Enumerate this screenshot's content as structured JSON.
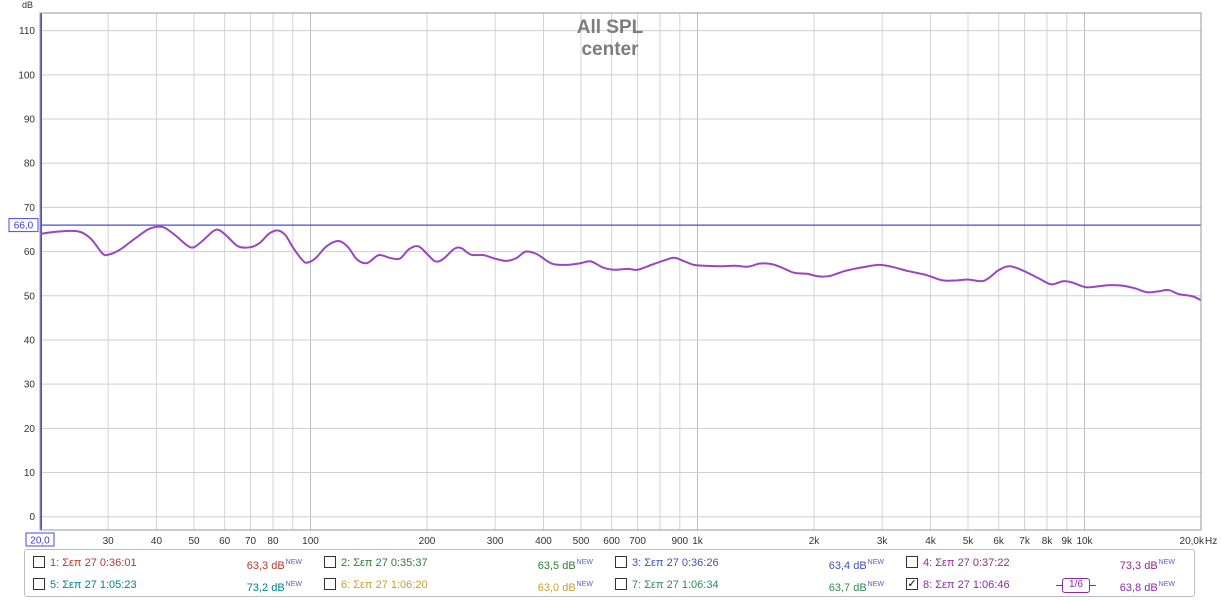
{
  "chart_data": {
    "type": "line",
    "title": "All SPL",
    "subtitle": "center",
    "ylabel": "dB",
    "xunit": "Hz",
    "xscale": "log",
    "xlim": [
      20,
      20000
    ],
    "ylim": [
      -3,
      114
    ],
    "yticks": [
      0,
      10,
      20,
      30,
      40,
      50,
      60,
      70,
      80,
      90,
      100,
      110
    ],
    "ytick_labels": [
      "0",
      "10",
      "20",
      "30",
      "40",
      "50",
      "60",
      "70",
      "80",
      "90",
      "100",
      "110"
    ],
    "xticks": [
      {
        "v": 20,
        "t": "20,0"
      },
      {
        "v": 30,
        "t": "30"
      },
      {
        "v": 40,
        "t": "40"
      },
      {
        "v": 50,
        "t": "50"
      },
      {
        "v": 60,
        "t": "60"
      },
      {
        "v": 70,
        "t": "70"
      },
      {
        "v": 80,
        "t": "80"
      },
      {
        "v": 100,
        "t": "100"
      },
      {
        "v": 200,
        "t": "200"
      },
      {
        "v": 300,
        "t": "300"
      },
      {
        "v": 400,
        "t": "400"
      },
      {
        "v": 500,
        "t": "500"
      },
      {
        "v": 600,
        "t": "600"
      },
      {
        "v": 700,
        "t": "700"
      },
      {
        "v": 900,
        "t": "900"
      },
      {
        "v": 1000,
        "t": "1k"
      },
      {
        "v": 2000,
        "t": "2k"
      },
      {
        "v": 3000,
        "t": "3k"
      },
      {
        "v": 4000,
        "t": "4k"
      },
      {
        "v": 5000,
        "t": "5k"
      },
      {
        "v": 6000,
        "t": "6k"
      },
      {
        "v": 7000,
        "t": "7k"
      },
      {
        "v": 8000,
        "t": "8k"
      },
      {
        "v": 9000,
        "t": "9k"
      },
      {
        "v": 10000,
        "t": "10k"
      },
      {
        "v": 20000,
        "t": "20,0k"
      }
    ],
    "reference_line": {
      "value": 66.0,
      "label": "66,0"
    },
    "grid": true,
    "series": [
      {
        "name": "8: Σεπ 27 1:06:46",
        "color": "#9b45c0",
        "points": [
          [
            20,
            64.0
          ],
          [
            22,
            64.5
          ],
          [
            25,
            64.6
          ],
          [
            27,
            63.0
          ],
          [
            29,
            59.6
          ],
          [
            30,
            59.3
          ],
          [
            32,
            60.3
          ],
          [
            35,
            62.8
          ],
          [
            38,
            65.0
          ],
          [
            40,
            65.6
          ],
          [
            42,
            65.4
          ],
          [
            45,
            63.5
          ],
          [
            48,
            61.4
          ],
          [
            50,
            61.0
          ],
          [
            53,
            62.7
          ],
          [
            56,
            64.6
          ],
          [
            58,
            64.9
          ],
          [
            61,
            63.4
          ],
          [
            65,
            61.2
          ],
          [
            70,
            61.0
          ],
          [
            74,
            62.0
          ],
          [
            78,
            64.0
          ],
          [
            82,
            64.8
          ],
          [
            86,
            63.8
          ],
          [
            90,
            61.0
          ],
          [
            95,
            58.2
          ],
          [
            98,
            57.5
          ],
          [
            103,
            58.5
          ],
          [
            110,
            61.2
          ],
          [
            118,
            62.4
          ],
          [
            125,
            61.0
          ],
          [
            132,
            58.2
          ],
          [
            140,
            57.4
          ],
          [
            150,
            59.2
          ],
          [
            160,
            58.6
          ],
          [
            170,
            58.4
          ],
          [
            180,
            60.6
          ],
          [
            190,
            61.2
          ],
          [
            200,
            59.5
          ],
          [
            210,
            57.8
          ],
          [
            220,
            58.3
          ],
          [
            235,
            60.6
          ],
          [
            245,
            60.8
          ],
          [
            260,
            59.3
          ],
          [
            280,
            59.2
          ],
          [
            300,
            58.4
          ],
          [
            320,
            57.9
          ],
          [
            340,
            58.5
          ],
          [
            360,
            60.0
          ],
          [
            385,
            59.4
          ],
          [
            420,
            57.3
          ],
          [
            460,
            57.0
          ],
          [
            500,
            57.4
          ],
          [
            530,
            57.8
          ],
          [
            570,
            56.4
          ],
          [
            610,
            55.9
          ],
          [
            660,
            56.1
          ],
          [
            700,
            55.9
          ],
          [
            760,
            57.0
          ],
          [
            820,
            58.0
          ],
          [
            870,
            58.6
          ],
          [
            920,
            57.9
          ],
          [
            980,
            57.0
          ],
          [
            1050,
            56.8
          ],
          [
            1150,
            56.7
          ],
          [
            1250,
            56.8
          ],
          [
            1350,
            56.6
          ],
          [
            1450,
            57.3
          ],
          [
            1550,
            57.2
          ],
          [
            1650,
            56.4
          ],
          [
            1780,
            55.2
          ],
          [
            1920,
            55.0
          ],
          [
            2050,
            54.4
          ],
          [
            2200,
            54.5
          ],
          [
            2400,
            55.6
          ],
          [
            2650,
            56.4
          ],
          [
            2950,
            57.0
          ],
          [
            3200,
            56.5
          ],
          [
            3500,
            55.6
          ],
          [
            3900,
            54.7
          ],
          [
            4300,
            53.5
          ],
          [
            4700,
            53.5
          ],
          [
            5000,
            53.7
          ],
          [
            5500,
            53.4
          ],
          [
            6000,
            55.8
          ],
          [
            6400,
            56.7
          ],
          [
            6900,
            55.8
          ],
          [
            7600,
            54.0
          ],
          [
            8200,
            52.6
          ],
          [
            8800,
            53.3
          ],
          [
            9300,
            53.0
          ],
          [
            10000,
            52.0
          ],
          [
            10500,
            52.0
          ],
          [
            11500,
            52.4
          ],
          [
            12500,
            52.3
          ],
          [
            13500,
            51.7
          ],
          [
            14500,
            50.8
          ],
          [
            15500,
            51.0
          ],
          [
            16500,
            51.3
          ],
          [
            17500,
            50.4
          ],
          [
            19000,
            49.9
          ],
          [
            20000,
            49.0
          ]
        ]
      }
    ],
    "legend": [
      {
        "label": "1: Σεπ 27 0:36:01",
        "value": "63,3 dB",
        "tag": "NEW",
        "checked": false,
        "color": "#b03a2e"
      },
      {
        "label": "2: Σεπ 27 0:35:37",
        "value": "63,5 dB",
        "tag": "NEW",
        "checked": false,
        "color": "#2e7d32"
      },
      {
        "label": "3: Σεπ 27 0:36:26",
        "value": "63,4 dB",
        "tag": "NEW",
        "checked": false,
        "color": "#3f51b5"
      },
      {
        "label": "4: Σεπ 27 0:37:22",
        "value": "73,3 dB",
        "tag": "NEW",
        "checked": false,
        "color": "#8e2c8e"
      },
      {
        "label": "5: Σεπ 27 1:05:23",
        "value": "73,2 dB",
        "tag": "NEW",
        "checked": false,
        "color": "#00838f"
      },
      {
        "label": "6: Σεπ 27 1:06:20",
        "value": "63,0 dB",
        "tag": "NEW",
        "checked": false,
        "color": "#c9a227"
      },
      {
        "label": "7: Σεπ 27 1:06:34",
        "value": "63,7 dB",
        "tag": "NEW",
        "checked": false,
        "color": "#2e8b57"
      },
      {
        "label": "8: Σεπ 27 1:06:46",
        "value": "63,8 dB",
        "tag": "NEW",
        "checked": true,
        "color": "#8a2ca5",
        "smoothing": "1/6"
      }
    ]
  }
}
